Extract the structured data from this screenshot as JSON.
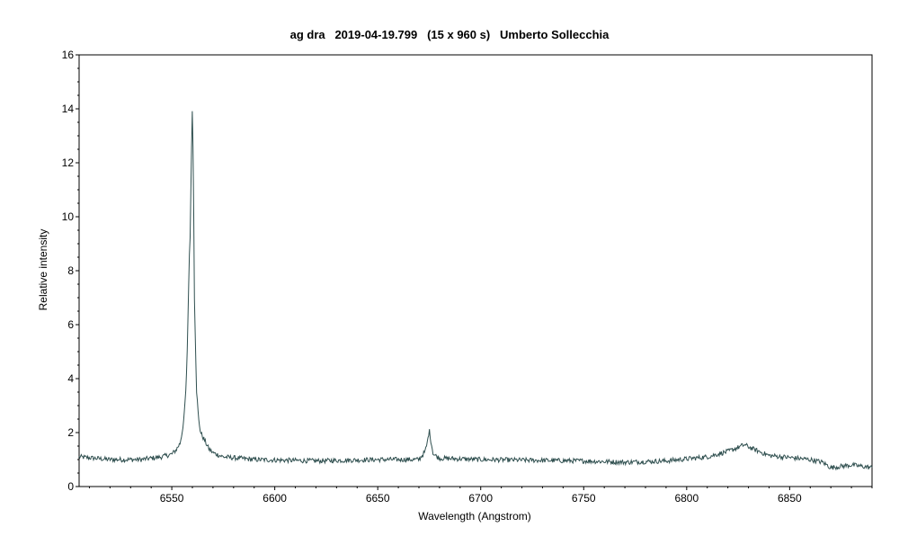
{
  "chart_data": {
    "type": "line",
    "title": "ag dra   2019-04-19.799   (15 x 960 s)   Umberto Sollecchia",
    "xlabel": "Wavelength (Angstrom)",
    "ylabel": "Relative intensity",
    "xlim": [
      6505,
      6890
    ],
    "ylim": [
      0,
      16
    ],
    "xticks": [
      6550,
      6600,
      6650,
      6700,
      6750,
      6800,
      6850
    ],
    "yticks": [
      0,
      2,
      4,
      6,
      8,
      10,
      12,
      14,
      16
    ],
    "grid": false,
    "legend": "none",
    "line_color": "#2f4f4f",
    "series": [
      {
        "x": [
          6505,
          6520,
          6535,
          6545,
          6550,
          6552,
          6554,
          6555,
          6556,
          6557,
          6557.5,
          6558,
          6558.5,
          6559,
          6559.5,
          6560,
          6560.5,
          6561,
          6562,
          6563,
          6564,
          6566,
          6568,
          6570,
          6575,
          6590,
          6620,
          6650,
          6670,
          6673,
          6674,
          6675,
          6676,
          6677,
          6680,
          6700,
          6750,
          6770,
          6790,
          6810,
          6820,
          6825,
          6828,
          6832,
          6840,
          6860,
          6866,
          6870,
          6880,
          6890
        ],
        "y": [
          1.1,
          1.0,
          1.0,
          1.1,
          1.2,
          1.35,
          1.6,
          2.0,
          2.6,
          3.8,
          5.0,
          6.8,
          8.5,
          9.5,
          12.2,
          14.2,
          11.5,
          7.0,
          3.6,
          2.5,
          2.0,
          1.7,
          1.4,
          1.25,
          1.1,
          1.0,
          0.95,
          1.0,
          1.0,
          1.3,
          1.6,
          2.1,
          1.6,
          1.2,
          1.05,
          1.0,
          0.95,
          0.9,
          0.95,
          1.1,
          1.3,
          1.45,
          1.55,
          1.4,
          1.15,
          1.0,
          0.9,
          0.7,
          0.8,
          0.7
        ]
      }
    ]
  }
}
